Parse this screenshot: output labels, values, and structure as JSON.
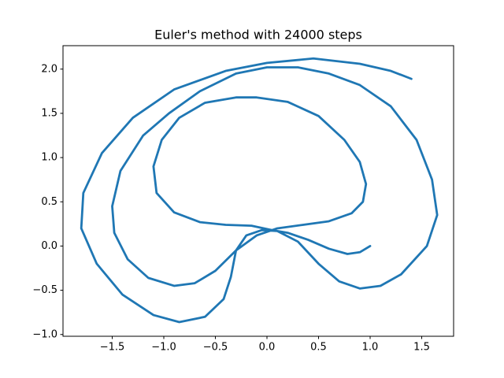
{
  "chart_data": {
    "type": "line",
    "title": "Euler's method with 24000 steps",
    "color": "#1f77b4",
    "grid": false,
    "x": [
      1.0,
      0.9,
      0.78,
      0.6,
      0.4,
      0.2,
      0.05,
      -0.15,
      -0.4,
      -0.65,
      -0.9,
      -1.07,
      -1.1,
      -1.02,
      -0.85,
      -0.6,
      -0.3,
      -0.1,
      0.2,
      0.5,
      0.75,
      0.9,
      0.96,
      0.93,
      0.82,
      0.6,
      0.35,
      0.1,
      -0.1,
      -0.3,
      -0.5,
      -0.7,
      -0.9,
      -1.15,
      -1.35,
      -1.48,
      -1.5,
      -1.42,
      -1.2,
      -0.95,
      -0.65,
      -0.3,
      0.0,
      0.3,
      0.6,
      0.9,
      1.2,
      1.45,
      1.6,
      1.65,
      1.55,
      1.3,
      1.1,
      0.9,
      0.7,
      0.5,
      0.3,
      0.1,
      -0.05,
      -0.2,
      -0.3,
      -0.35,
      -0.42,
      -0.6,
      -0.85,
      -1.1,
      -1.4,
      -1.65,
      -1.8,
      -1.78,
      -1.6,
      -1.3,
      -0.9,
      -0.4,
      0.0,
      0.45,
      0.9,
      1.2,
      1.4
    ],
    "values": [
      0.0,
      -0.07,
      -0.09,
      -0.03,
      0.07,
      0.15,
      0.18,
      0.23,
      0.24,
      0.27,
      0.38,
      0.6,
      0.9,
      1.2,
      1.45,
      1.62,
      1.68,
      1.68,
      1.63,
      1.47,
      1.2,
      0.95,
      0.7,
      0.5,
      0.37,
      0.28,
      0.24,
      0.2,
      0.12,
      -0.05,
      -0.28,
      -0.42,
      -0.45,
      -0.36,
      -0.15,
      0.15,
      0.45,
      0.85,
      1.25,
      1.5,
      1.75,
      1.95,
      2.02,
      2.02,
      1.95,
      1.82,
      1.58,
      1.2,
      0.75,
      0.35,
      0.0,
      -0.32,
      -0.45,
      -0.48,
      -0.4,
      -0.2,
      0.05,
      0.17,
      0.18,
      0.12,
      -0.05,
      -0.35,
      -0.6,
      -0.8,
      -0.86,
      -0.78,
      -0.55,
      -0.2,
      0.2,
      0.6,
      1.05,
      1.45,
      1.77,
      1.98,
      2.07,
      2.12,
      2.06,
      1.98,
      1.89
    ],
    "xlim": [
      -1.977,
      1.809
    ],
    "ylim": [
      -1.02,
      2.265
    ],
    "xticks": [
      {
        "value": -1.5,
        "label": "−1.5"
      },
      {
        "value": -1.0,
        "label": "−1.0"
      },
      {
        "value": -0.5,
        "label": "−0.5"
      },
      {
        "value": 0.0,
        "label": "0.0"
      },
      {
        "value": 0.5,
        "label": "0.5"
      },
      {
        "value": 1.0,
        "label": "1.0"
      },
      {
        "value": 1.5,
        "label": "1.5"
      }
    ],
    "yticks": [
      {
        "value": -1.0,
        "label": "−1.0"
      },
      {
        "value": -0.5,
        "label": "−0.5"
      },
      {
        "value": 0.0,
        "label": "0.0"
      },
      {
        "value": 0.5,
        "label": "0.5"
      },
      {
        "value": 1.0,
        "label": "1.0"
      },
      {
        "value": 1.5,
        "label": "1.5"
      },
      {
        "value": 2.0,
        "label": "2.0"
      }
    ]
  }
}
